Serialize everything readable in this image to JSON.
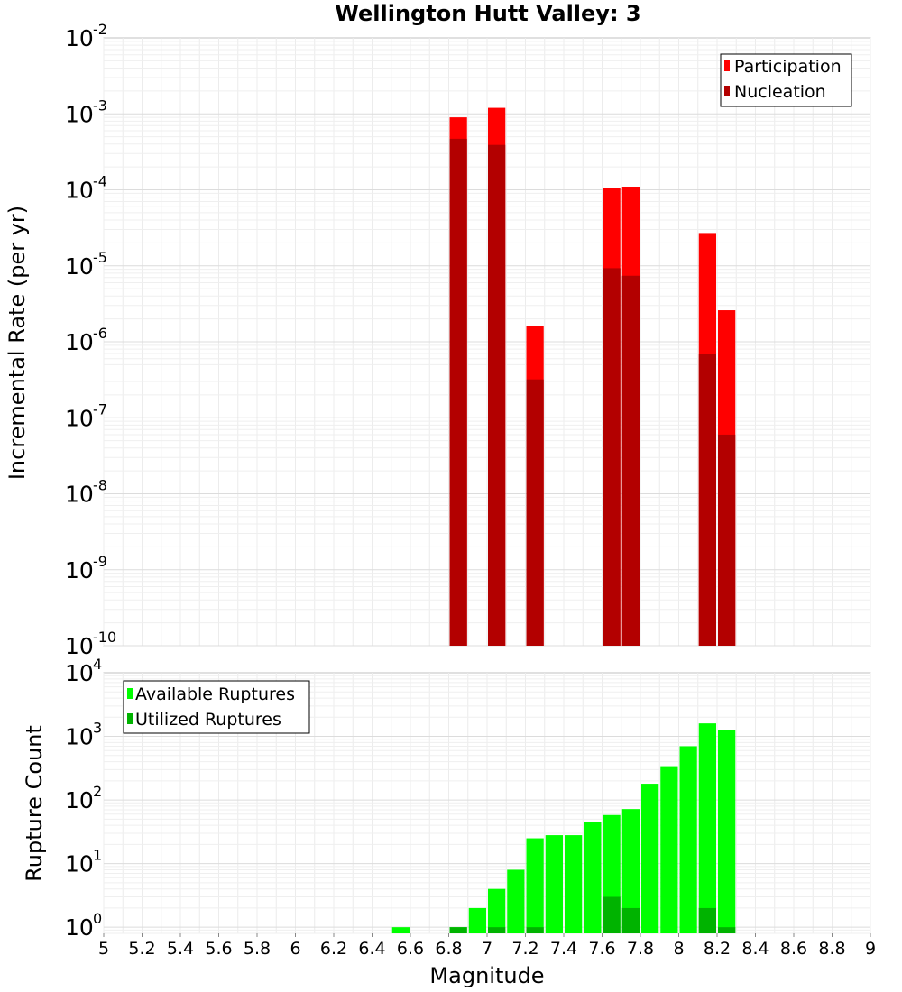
{
  "chart_data": [
    {
      "type": "bar",
      "title": "Wellington Hutt Valley: 3",
      "xlabel": "Magnitude",
      "ylabel": "Incremental Rate (per yr)",
      "yscale": "log",
      "xlim": [
        5,
        9
      ],
      "ylim": [
        1e-10,
        0.01
      ],
      "ytick_exponents": [
        -10,
        -9,
        -8,
        -7,
        -6,
        -5,
        -4,
        -3,
        -2
      ],
      "ytick_base": "10",
      "grid": true,
      "legend_position": "top-right",
      "bar_width": 0.1,
      "series": [
        {
          "name": "Participation",
          "color": "#ff0000",
          "points": [
            {
              "x": 6.85,
              "y": 0.0009
            },
            {
              "x": 7.05,
              "y": 0.0012
            },
            {
              "x": 7.25,
              "y": 1.6e-06
            },
            {
              "x": 7.65,
              "y": 0.000105
            },
            {
              "x": 7.75,
              "y": 0.00011
            },
            {
              "x": 8.15,
              "y": 2.7e-05
            },
            {
              "x": 8.25,
              "y": 2.6e-06
            }
          ]
        },
        {
          "name": "Nucleation",
          "color": "#b30000",
          "points": [
            {
              "x": 6.85,
              "y": 0.00047
            },
            {
              "x": 7.05,
              "y": 0.00039
            },
            {
              "x": 7.25,
              "y": 3.2e-07
            },
            {
              "x": 7.65,
              "y": 9.3e-06
            },
            {
              "x": 7.75,
              "y": 7.4e-06
            },
            {
              "x": 8.15,
              "y": 7e-07
            },
            {
              "x": 8.25,
              "y": 6e-08
            }
          ]
        }
      ]
    },
    {
      "type": "bar",
      "title": "",
      "xlabel": "Magnitude",
      "ylabel": "Rupture Count",
      "yscale": "log",
      "xlim": [
        5,
        9
      ],
      "ylim": [
        0.8,
        10000
      ],
      "ytick_exponents": [
        0,
        1,
        2,
        3,
        4
      ],
      "ytick_base": "10",
      "grid": true,
      "legend_position": "top-left",
      "bar_width": 0.1,
      "x_ticks": [
        "5",
        "5.2",
        "5.4",
        "5.6",
        "5.8",
        "6",
        "6.2",
        "6.4",
        "6.6",
        "6.8",
        "7",
        "7.2",
        "7.4",
        "7.6",
        "7.8",
        "8",
        "8.2",
        "8.4",
        "8.6",
        "8.8",
        "9"
      ],
      "series": [
        {
          "name": "Available Ruptures",
          "color": "#00ff00",
          "points": [
            {
              "x": 6.55,
              "y": 1
            },
            {
              "x": 6.85,
              "y": 1
            },
            {
              "x": 6.95,
              "y": 2
            },
            {
              "x": 7.05,
              "y": 4
            },
            {
              "x": 7.15,
              "y": 8
            },
            {
              "x": 7.25,
              "y": 25
            },
            {
              "x": 7.35,
              "y": 28
            },
            {
              "x": 7.45,
              "y": 28
            },
            {
              "x": 7.55,
              "y": 45
            },
            {
              "x": 7.65,
              "y": 58
            },
            {
              "x": 7.75,
              "y": 72
            },
            {
              "x": 7.85,
              "y": 180
            },
            {
              "x": 7.95,
              "y": 340
            },
            {
              "x": 8.05,
              "y": 700
            },
            {
              "x": 8.15,
              "y": 1600
            },
            {
              "x": 8.25,
              "y": 1250
            }
          ]
        },
        {
          "name": "Utilized Ruptures",
          "color": "#00b300",
          "points": [
            {
              "x": 6.85,
              "y": 1
            },
            {
              "x": 7.05,
              "y": 1
            },
            {
              "x": 7.25,
              "y": 1
            },
            {
              "x": 7.65,
              "y": 3
            },
            {
              "x": 7.75,
              "y": 2
            },
            {
              "x": 8.15,
              "y": 2
            },
            {
              "x": 8.25,
              "y": 1
            }
          ]
        }
      ]
    }
  ]
}
